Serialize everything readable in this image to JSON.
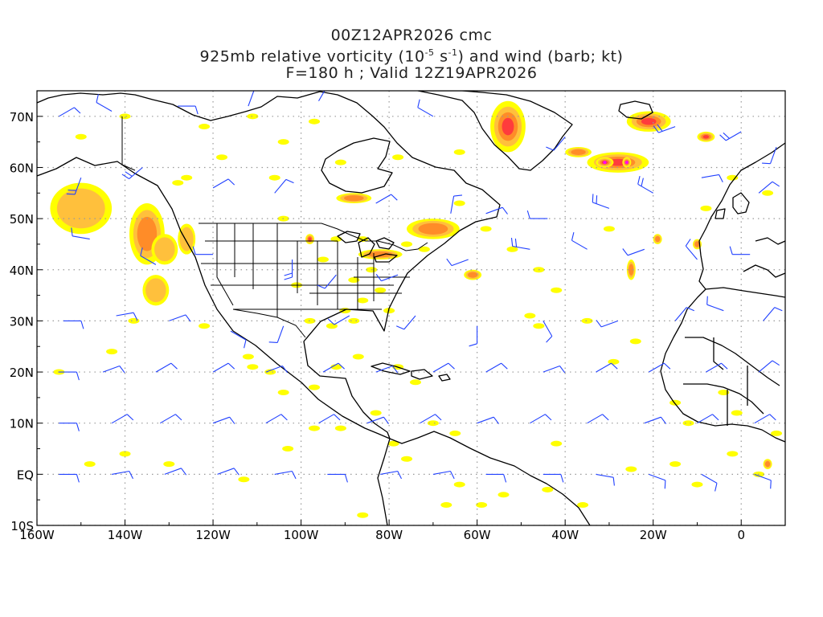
{
  "title": {
    "line1": "00Z12APR2026 cmc",
    "line2_pre": "925mb relative vorticity (10",
    "line2_exp1": "-5",
    "line2_mid": " s",
    "line2_exp2": "-1",
    "line2_post": ") and wind (barb; kt)",
    "line3": "F=180 h ; Valid 12Z19APR2026"
  },
  "map_data": {
    "lon_range": [
      -160,
      10
    ],
    "lat_range": [
      -10,
      75
    ],
    "lon_ticks": [
      {
        "value": -160,
        "label": "160W"
      },
      {
        "value": -140,
        "label": "140W"
      },
      {
        "value": -120,
        "label": "120W"
      },
      {
        "value": -100,
        "label": "100W"
      },
      {
        "value": -80,
        "label": "80W"
      },
      {
        "value": -60,
        "label": "60W"
      },
      {
        "value": -40,
        "label": "40W"
      },
      {
        "value": -20,
        "label": "20W"
      },
      {
        "value": 0,
        "label": "0"
      }
    ],
    "lat_ticks": [
      {
        "value": 70,
        "label": "70N"
      },
      {
        "value": 60,
        "label": "60N"
      },
      {
        "value": 50,
        "label": "50N"
      },
      {
        "value": 40,
        "label": "40N"
      },
      {
        "value": 30,
        "label": "30N"
      },
      {
        "value": 20,
        "label": "20N"
      },
      {
        "value": 10,
        "label": "10N"
      },
      {
        "value": 0,
        "label": "EQ"
      },
      {
        "value": -10,
        "label": "10S"
      }
    ],
    "colors": {
      "yellow": "#ffff00",
      "orange": "#ffc03c",
      "dark_orange": "#ff8c28",
      "red": "#ff3c3c",
      "magenta": "#ff00ff",
      "barb": "#2040ff",
      "coast": "#000000",
      "grid": "#999999"
    },
    "vorticity_blobs": [
      {
        "lon": -150,
        "lat": 52,
        "rlon": 7,
        "rlat": 5,
        "level": 1
      },
      {
        "lon": -135,
        "lat": 47,
        "rlon": 4,
        "rlat": 6,
        "level": 2
      },
      {
        "lon": -131,
        "lat": 44,
        "rlon": 3,
        "rlat": 3,
        "level": 1
      },
      {
        "lon": -126,
        "lat": 46,
        "rlon": 2,
        "rlat": 3,
        "level": 1
      },
      {
        "lon": -133,
        "lat": 36,
        "rlon": 3,
        "rlat": 3,
        "level": 1
      },
      {
        "lon": -98,
        "lat": 46,
        "rlon": 1,
        "rlat": 1,
        "level": 3
      },
      {
        "lon": -88,
        "lat": 54,
        "rlon": 4,
        "rlat": 1,
        "level": 2
      },
      {
        "lon": -82,
        "lat": 43,
        "rlon": 5,
        "rlat": 1,
        "level": 2
      },
      {
        "lon": -70,
        "lat": 48,
        "rlon": 6,
        "rlat": 2,
        "level": 2
      },
      {
        "lon": -61,
        "lat": 39,
        "rlon": 2,
        "rlat": 1,
        "level": 2
      },
      {
        "lon": -53,
        "lat": 68,
        "rlon": 4,
        "rlat": 5,
        "level": 3
      },
      {
        "lon": -37,
        "lat": 63,
        "rlon": 3,
        "rlat": 1,
        "level": 2
      },
      {
        "lon": -28,
        "lat": 61,
        "rlon": 7,
        "rlat": 2,
        "level": 3
      },
      {
        "lon": -31,
        "lat": 61,
        "rlon": 2,
        "rlat": 1,
        "level": 4
      },
      {
        "lon": -26,
        "lat": 61,
        "rlon": 1,
        "rlat": 1,
        "level": 4
      },
      {
        "lon": -21,
        "lat": 69,
        "rlon": 5,
        "rlat": 2,
        "level": 3
      },
      {
        "lon": -8,
        "lat": 66,
        "rlon": 2,
        "rlat": 1,
        "level": 3
      },
      {
        "lon": -19,
        "lat": 46,
        "rlon": 1,
        "rlat": 1,
        "level": 2
      },
      {
        "lon": -25,
        "lat": 40,
        "rlon": 1,
        "rlat": 2,
        "level": 2
      },
      {
        "lon": 6,
        "lat": 2,
        "rlon": 1,
        "rlat": 1,
        "level": 2
      },
      {
        "lon": -10,
        "lat": 45,
        "rlon": 1,
        "rlat": 1,
        "level": 2
      }
    ],
    "yellow_specks": [
      [
        -150,
        66
      ],
      [
        -140,
        70
      ],
      [
        -122,
        68
      ],
      [
        -111,
        70
      ],
      [
        -104,
        65
      ],
      [
        -118,
        62
      ],
      [
        -106,
        58
      ],
      [
        -97,
        69
      ],
      [
        -91,
        61
      ],
      [
        -78,
        62
      ],
      [
        -104,
        50
      ],
      [
        -126,
        58
      ],
      [
        -128,
        57
      ],
      [
        -155,
        20
      ],
      [
        -138,
        30
      ],
      [
        -143,
        24
      ],
      [
        -122,
        29
      ],
      [
        -112,
        23
      ],
      [
        -111,
        21
      ],
      [
        -107,
        20
      ],
      [
        -104,
        16
      ],
      [
        -97,
        17
      ],
      [
        -92,
        21
      ],
      [
        -87,
        23
      ],
      [
        -78,
        21
      ],
      [
        -74,
        18
      ],
      [
        -70,
        10
      ],
      [
        -65,
        8
      ],
      [
        -83,
        12
      ],
      [
        -79,
        6
      ],
      [
        -76,
        3
      ],
      [
        -64,
        -2
      ],
      [
        -67,
        -6
      ],
      [
        -59,
        -6
      ],
      [
        -54,
        -4
      ],
      [
        -44,
        -3
      ],
      [
        -36,
        -6
      ],
      [
        -42,
        6
      ],
      [
        -25,
        1
      ],
      [
        -15,
        2
      ],
      [
        -10,
        -2
      ],
      [
        -2,
        4
      ],
      [
        4,
        0
      ],
      [
        8,
        8
      ],
      [
        -148,
        2
      ],
      [
        -140,
        4
      ],
      [
        -130,
        2
      ],
      [
        -113,
        -1
      ],
      [
        -103,
        5
      ],
      [
        -91,
        9
      ],
      [
        -97,
        9
      ],
      [
        -86,
        -8
      ],
      [
        -64,
        63
      ],
      [
        -64,
        53
      ],
      [
        -58,
        48
      ],
      [
        -52,
        44
      ],
      [
        -46,
        40
      ],
      [
        -42,
        36
      ],
      [
        -35,
        30
      ],
      [
        -29,
        22
      ],
      [
        -24,
        26
      ],
      [
        -15,
        14
      ],
      [
        -12,
        10
      ],
      [
        -4,
        16
      ],
      [
        -1,
        12
      ],
      [
        -8,
        52
      ],
      [
        -2,
        58
      ],
      [
        6,
        55
      ],
      [
        -30,
        48
      ],
      [
        -48,
        31
      ],
      [
        -46,
        29
      ],
      [
        -95,
        42
      ],
      [
        -88,
        38
      ],
      [
        -101,
        37
      ],
      [
        -92,
        46
      ],
      [
        -86,
        46
      ],
      [
        -76,
        45
      ],
      [
        -72,
        44
      ],
      [
        -80,
        32
      ],
      [
        -88,
        30
      ],
      [
        -93,
        29
      ],
      [
        -98,
        30
      ],
      [
        -82,
        36
      ],
      [
        -84,
        40
      ],
      [
        -90,
        32
      ],
      [
        -86,
        34
      ]
    ],
    "wind_barbs": [
      [
        -155,
        70,
        60,
        1
      ],
      [
        -143,
        71,
        300,
        1
      ],
      [
        -128,
        72,
        90,
        1
      ],
      [
        -112,
        72,
        20,
        1
      ],
      [
        -96,
        73,
        30,
        1
      ],
      [
        -70,
        70,
        300,
        1
      ],
      [
        -40,
        66,
        220,
        1
      ],
      [
        -15,
        68,
        250,
        2
      ],
      [
        0,
        67,
        240,
        2
      ],
      [
        8,
        64,
        200,
        1
      ],
      [
        -150,
        58,
        200,
        2
      ],
      [
        -136,
        60,
        230,
        2
      ],
      [
        -120,
        56,
        60,
        1
      ],
      [
        -106,
        55,
        40,
        1
      ],
      [
        -83,
        53,
        60,
        1
      ],
      [
        -66,
        51,
        10,
        1
      ],
      [
        -58,
        51,
        70,
        1
      ],
      [
        -44,
        50,
        270,
        1
      ],
      [
        -30,
        52,
        290,
        2
      ],
      [
        -20,
        55,
        300,
        2
      ],
      [
        -9,
        58,
        80,
        1
      ],
      [
        4,
        55,
        50,
        1
      ],
      [
        -148,
        46,
        280,
        1
      ],
      [
        -133,
        41,
        300,
        1
      ],
      [
        -120,
        43,
        270,
        1
      ],
      [
        -102,
        42,
        180,
        2
      ],
      [
        -92,
        39,
        220,
        1
      ],
      [
        -78,
        39,
        250,
        1
      ],
      [
        -62,
        42,
        250,
        1
      ],
      [
        -48,
        44,
        280,
        2
      ],
      [
        -35,
        44,
        300,
        1
      ],
      [
        -22,
        44,
        250,
        1
      ],
      [
        -10,
        42,
        320,
        1
      ],
      [
        2,
        43,
        270,
        1
      ],
      [
        -154,
        30,
        90,
        1
      ],
      [
        -142,
        31,
        80,
        1
      ],
      [
        -130,
        30,
        70,
        1
      ],
      [
        -116,
        28,
        120,
        1
      ],
      [
        -104,
        29,
        200,
        1
      ],
      [
        -89,
        31,
        240,
        1
      ],
      [
        -74,
        31,
        220,
        1
      ],
      [
        -60,
        29,
        180,
        1
      ],
      [
        -45,
        30,
        150,
        1
      ],
      [
        -28,
        30,
        250,
        1
      ],
      [
        -15,
        30,
        40,
        1
      ],
      [
        -4,
        32,
        290,
        1
      ],
      [
        5,
        30,
        40,
        1
      ],
      [
        -155,
        20,
        90,
        1
      ],
      [
        -145,
        20,
        70,
        1
      ],
      [
        -133,
        20,
        60,
        1
      ],
      [
        -120,
        20,
        60,
        1
      ],
      [
        -108,
        20,
        70,
        1
      ],
      [
        -95,
        20,
        60,
        1
      ],
      [
        -83,
        20,
        70,
        1
      ],
      [
        -70,
        20,
        60,
        1
      ],
      [
        -58,
        20,
        60,
        1
      ],
      [
        -45,
        20,
        70,
        1
      ],
      [
        -33,
        20,
        60,
        1
      ],
      [
        -21,
        20,
        60,
        1
      ],
      [
        -8,
        20,
        60,
        1
      ],
      [
        4,
        20,
        50,
        1
      ],
      [
        -155,
        10,
        90,
        1
      ],
      [
        -143,
        10,
        60,
        1
      ],
      [
        -132,
        10,
        60,
        1
      ],
      [
        -120,
        10,
        70,
        1
      ],
      [
        -108,
        10,
        60,
        1
      ],
      [
        -96,
        10,
        60,
        1
      ],
      [
        -85,
        10,
        70,
        1
      ],
      [
        -73,
        10,
        60,
        1
      ],
      [
        -60,
        10,
        70,
        1
      ],
      [
        -48,
        10,
        60,
        1
      ],
      [
        -35,
        10,
        60,
        1
      ],
      [
        -22,
        10,
        70,
        1
      ],
      [
        -10,
        10,
        60,
        1
      ],
      [
        3,
        10,
        60,
        1
      ],
      [
        -155,
        0,
        90,
        1
      ],
      [
        -143,
        0,
        80,
        1
      ],
      [
        -131,
        0,
        70,
        1
      ],
      [
        -119,
        0,
        70,
        1
      ],
      [
        -106,
        0,
        80,
        1
      ],
      [
        -94,
        0,
        90,
        1
      ],
      [
        -82,
        0,
        80,
        1
      ],
      [
        -70,
        0,
        80,
        1
      ],
      [
        -58,
        0,
        90,
        1
      ],
      [
        -45,
        0,
        90,
        1
      ],
      [
        -33,
        0,
        100,
        1
      ],
      [
        -21,
        0,
        110,
        1
      ],
      [
        -9,
        0,
        120,
        1
      ],
      [
        3,
        0,
        110,
        1
      ]
    ]
  }
}
